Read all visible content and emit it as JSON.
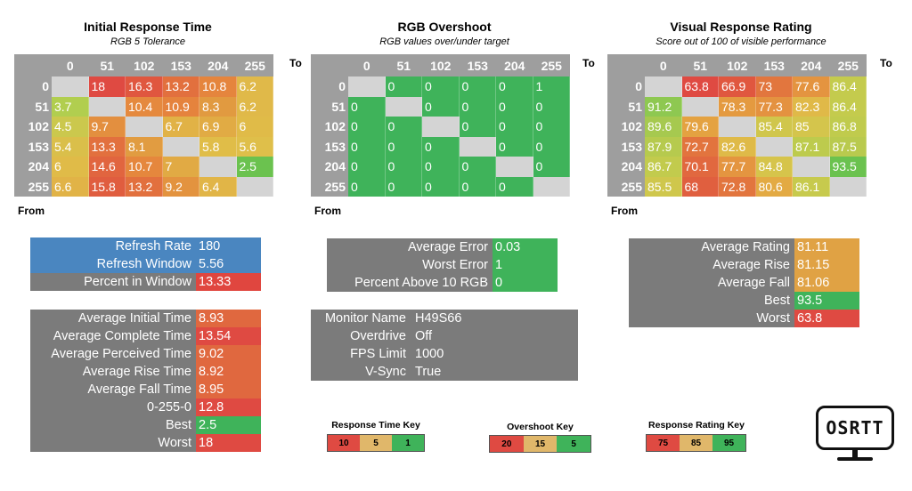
{
  "panels": [
    {
      "title": "Initial Response Time",
      "subtitle": "RGB 5 Tolerance",
      "to_label": "To",
      "from_label": "From",
      "columns": [
        "0",
        "51",
        "102",
        "153",
        "204",
        "255"
      ],
      "rows": [
        {
          "label": "0",
          "cells": [
            "",
            "18",
            "16.3",
            "13.2",
            "10.8",
            "6.2"
          ],
          "colors": [
            "#d4d4d4",
            "#df4a42",
            "#e0573f",
            "#e2703e",
            "#e5853d",
            "#e0b949"
          ]
        },
        {
          "label": "51",
          "cells": [
            "3.7",
            "",
            "10.4",
            "10.9",
            "8.3",
            "6.2"
          ],
          "colors": [
            "#b1ce4f",
            "#d4d4d4",
            "#e5893e",
            "#e5833d",
            "#e19a40",
            "#e0b949"
          ]
        },
        {
          "label": "102",
          "cells": [
            "4.5",
            "9.7",
            "",
            "6.7",
            "6.9",
            "6"
          ],
          "colors": [
            "#cbc84d",
            "#e38f3f",
            "#d4d4d4",
            "#e1b246",
            "#e1ab44",
            "#e0bb48"
          ]
        },
        {
          "label": "153",
          "cells": [
            "5.4",
            "13.3",
            "8.1",
            "",
            "5.8",
            "5.6"
          ],
          "colors": [
            "#dabf4a",
            "#e2703e",
            "#e19c41",
            "#d4d4d4",
            "#e0bd48",
            "#dfbf4a"
          ]
        },
        {
          "label": "204",
          "cells": [
            "6",
            "14.6",
            "10.7",
            "7",
            "",
            "2.5"
          ],
          "colors": [
            "#e0bb48",
            "#e1653f",
            "#e5873d",
            "#e1aa44",
            "#d4d4d4",
            "#6bc24f"
          ]
        },
        {
          "label": "255",
          "cells": [
            "6.6",
            "15.8",
            "13.2",
            "9.2",
            "6.4",
            ""
          ],
          "colors": [
            "#e1b347",
            "#e05d3f",
            "#e2703e",
            "#e3933f",
            "#e1b547",
            "#d4d4d4"
          ]
        }
      ]
    },
    {
      "title": "RGB Overshoot",
      "subtitle": "RGB values over/under target",
      "to_label": "To",
      "from_label": "From",
      "columns": [
        "0",
        "51",
        "102",
        "153",
        "204",
        "255"
      ],
      "rows": [
        {
          "label": "0",
          "cells": [
            "",
            "0",
            "0",
            "0",
            "0",
            "1"
          ],
          "colors": [
            "#d4d4d4",
            "#3fb35a",
            "#3fb35a",
            "#3fb35a",
            "#3fb35a",
            "#3fb35a"
          ]
        },
        {
          "label": "51",
          "cells": [
            "0",
            "",
            "0",
            "0",
            "0",
            "0"
          ],
          "colors": [
            "#3fb35a",
            "#d4d4d4",
            "#3fb35a",
            "#3fb35a",
            "#3fb35a",
            "#3fb35a"
          ]
        },
        {
          "label": "102",
          "cells": [
            "0",
            "0",
            "",
            "0",
            "0",
            "0"
          ],
          "colors": [
            "#3fb35a",
            "#3fb35a",
            "#d4d4d4",
            "#3fb35a",
            "#3fb35a",
            "#3fb35a"
          ]
        },
        {
          "label": "153",
          "cells": [
            "0",
            "0",
            "0",
            "",
            "0",
            "0"
          ],
          "colors": [
            "#3fb35a",
            "#3fb35a",
            "#3fb35a",
            "#d4d4d4",
            "#3fb35a",
            "#3fb35a"
          ]
        },
        {
          "label": "204",
          "cells": [
            "0",
            "0",
            "0",
            "0",
            "",
            "0"
          ],
          "colors": [
            "#3fb35a",
            "#3fb35a",
            "#3fb35a",
            "#3fb35a",
            "#d4d4d4",
            "#3fb35a"
          ]
        },
        {
          "label": "255",
          "cells": [
            "0",
            "0",
            "0",
            "0",
            "0",
            ""
          ],
          "colors": [
            "#3fb35a",
            "#3fb35a",
            "#3fb35a",
            "#3fb35a",
            "#3fb35a",
            "#d4d4d4"
          ]
        }
      ]
    },
    {
      "title": "Visual Response Rating",
      "subtitle": "Score out of 100 of visible performance",
      "to_label": "To",
      "from_label": "From",
      "columns": [
        "0",
        "51",
        "102",
        "153",
        "204",
        "255"
      ],
      "rows": [
        {
          "label": "0",
          "cells": [
            "",
            "63.8",
            "66.9",
            "73",
            "77.6",
            "86.4"
          ],
          "colors": [
            "#d4d4d4",
            "#df4a42",
            "#e0573f",
            "#e2763e",
            "#e49440",
            "#c4cb4d"
          ]
        },
        {
          "label": "51",
          "cells": [
            "91.2",
            "",
            "78.3",
            "77.3",
            "82.3",
            "86.4"
          ],
          "colors": [
            "#8ec851",
            "#d4d4d4",
            "#e49a40",
            "#e49240",
            "#e0b948",
            "#c4cb4d"
          ]
        },
        {
          "label": "102",
          "cells": [
            "89.6",
            "79.6",
            "",
            "85.4",
            "85",
            "86.8"
          ],
          "colors": [
            "#a6c94f",
            "#e4a241",
            "#d4d4d4",
            "#d0c64c",
            "#d4c54c",
            "#c0cb4d"
          ]
        },
        {
          "label": "153",
          "cells": [
            "87.9",
            "72.7",
            "82.6",
            "",
            "87.1",
            "87.5"
          ],
          "colors": [
            "#b6ca4e",
            "#e2743e",
            "#dfba48",
            "#d4d4d4",
            "#bdcb4d",
            "#b9ca4e"
          ]
        },
        {
          "label": "204",
          "cells": [
            "86.7",
            "70.1",
            "77.7",
            "84.8",
            "",
            "93.5"
          ],
          "colors": [
            "#c2cb4d",
            "#e1683f",
            "#e49540",
            "#d6c44b",
            "#d4d4d4",
            "#6bc24f"
          ]
        },
        {
          "label": "255",
          "cells": [
            "85.5",
            "68",
            "72.8",
            "80.6",
            "86.1",
            ""
          ],
          "colors": [
            "#cfc74c",
            "#e05f3f",
            "#e2753e",
            "#e3aa43",
            "#c7ca4d",
            "#d4d4d4"
          ]
        }
      ]
    }
  ],
  "stats_refresh": [
    {
      "label": "Refresh Rate",
      "value": "180",
      "label_color": "#4a86c0",
      "value_color": "#4a86c0"
    },
    {
      "label": "Refresh Window",
      "value": "5.56",
      "label_color": "#4a86c0",
      "value_color": "#4a86c0"
    },
    {
      "label": "Percent in Window",
      "value": "13.33",
      "label_color": "#7b7b7b",
      "value_color": "#e0463f"
    }
  ],
  "stats_response": [
    {
      "label": "Average Initial Time",
      "value": "8.93",
      "value_color": "#e0683f"
    },
    {
      "label": "Average Complete Time",
      "value": "13.54",
      "value_color": "#df4a42"
    },
    {
      "label": "Average Perceived Time",
      "value": "9.02",
      "value_color": "#e0683f"
    },
    {
      "label": "Average Rise Time",
      "value": "8.92",
      "value_color": "#e0683f"
    },
    {
      "label": "Average Fall Time",
      "value": "8.95",
      "value_color": "#e0683f"
    },
    {
      "label": "0-255-0",
      "value": "12.8",
      "value_color": "#df4a42"
    },
    {
      "label": "Best",
      "value": "2.5",
      "value_color": "#3fb35a"
    },
    {
      "label": "Worst",
      "value": "18",
      "value_color": "#df4a42"
    }
  ],
  "stats_overshoot": [
    {
      "label": "Average Error",
      "value": "0.03",
      "value_color": "#3fb35a"
    },
    {
      "label": "Worst Error",
      "value": "1",
      "value_color": "#3fb35a"
    },
    {
      "label": "Percent Above 10 RGB",
      "value": "0",
      "value_color": "#3fb35a"
    }
  ],
  "stats_monitor": [
    {
      "label": "Monitor Name",
      "value": "H49S66"
    },
    {
      "label": "Overdrive",
      "value": "Off"
    },
    {
      "label": "FPS Limit",
      "value": "1000"
    },
    {
      "label": "V-Sync",
      "value": "True"
    }
  ],
  "stats_rating": [
    {
      "label": "Average Rating",
      "value": "81.11",
      "value_color": "#e0a244"
    },
    {
      "label": "Average Rise",
      "value": "81.15",
      "value_color": "#e0a244"
    },
    {
      "label": "Average Fall",
      "value": "81.06",
      "value_color": "#e0a244"
    },
    {
      "label": "Best",
      "value": "93.5",
      "value_color": "#3fb35a"
    },
    {
      "label": "Worst",
      "value": "63.8",
      "value_color": "#df4a42"
    }
  ],
  "keys": [
    {
      "title": "Response Time Key",
      "values": [
        "10",
        "5",
        "1"
      ]
    },
    {
      "title": "Overshoot Key",
      "values": [
        "20",
        "15",
        "5"
      ]
    },
    {
      "title": "Response Rating Key",
      "values": [
        "75",
        "85",
        "95"
      ]
    }
  ],
  "key_colors": [
    "#df4a42",
    "#e0b76a",
    "#3fb35a"
  ],
  "logo_text": "OSRTT"
}
